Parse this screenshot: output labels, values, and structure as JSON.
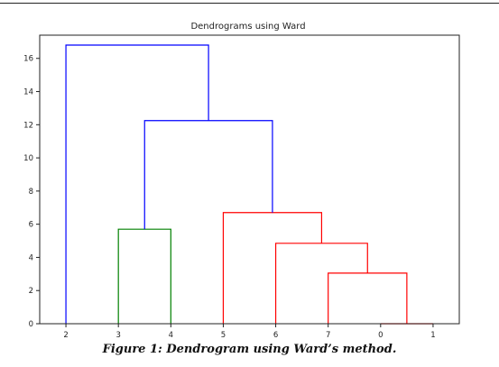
{
  "chart_data": {
    "type": "dendrogram",
    "title": "Dendrograms using Ward",
    "xlabel": "",
    "ylabel": "",
    "leaf_order": [
      "2",
      "3",
      "4",
      "5",
      "6",
      "7",
      "0",
      "1"
    ],
    "ylim": [
      0,
      17.4
    ],
    "yticks": [
      0,
      2,
      4,
      6,
      8,
      10,
      12,
      14,
      16
    ],
    "grid": false,
    "colors": {
      "green_cluster": "#008000",
      "red_cluster": "#ff0000",
      "root_links": "#0000ff"
    },
    "links": [
      {
        "left": "0",
        "right": "1",
        "height": 0,
        "color": "red_cluster"
      },
      {
        "left": "7",
        "right": "(0,1)",
        "height": 3.05,
        "color": "red_cluster"
      },
      {
        "left": "6",
        "right": "(7,0,1)",
        "height": 4.85,
        "color": "red_cluster"
      },
      {
        "left": "5",
        "right": "(6,7,0,1)",
        "height": 6.7,
        "color": "red_cluster"
      },
      {
        "left": "3",
        "right": "4",
        "height": 5.7,
        "color": "green_cluster"
      },
      {
        "left": "(3,4)",
        "right": "(5,6,7,0,1)",
        "height": 12.25,
        "color": "root_links"
      },
      {
        "left": "2",
        "right": "(3,4,5,6,7,0,1)",
        "height": 16.8,
        "color": "root_links"
      }
    ]
  },
  "caption": "Figure 1: Dendrogram using Ward’s method."
}
